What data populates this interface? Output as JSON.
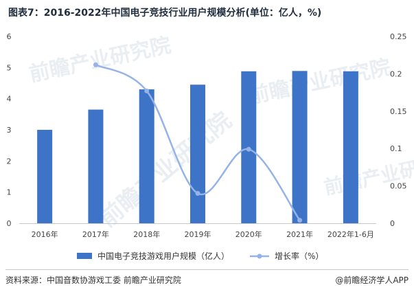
{
  "title": "图表7：2016-2022年中国电子竞技行业用户规模分析(单位：亿人，%)",
  "watermark": "前瞻产业研究院",
  "colors": {
    "bar": "#3e74c7",
    "line": "#95b3e6",
    "axis": "#c8c8c8",
    "text": "#444444"
  },
  "chart_data": {
    "type": "bar",
    "categories": [
      "2016年",
      "2017年",
      "2018年",
      "2019年",
      "2020年",
      "2021年",
      "2022年1-6月"
    ],
    "series": [
      {
        "name": "中国电子竞技游戏用户规模（亿人）",
        "type": "bar",
        "axis": "left",
        "values": [
          3.0,
          3.65,
          4.3,
          4.45,
          4.88,
          4.89,
          4.88
        ]
      },
      {
        "name": "增长率（%）",
        "type": "line",
        "axis": "right",
        "values": [
          null,
          0.212,
          0.177,
          0.04,
          0.099,
          0.004,
          null
        ]
      }
    ],
    "y_left": {
      "min": 0,
      "max": 6,
      "ticks": [
        "0",
        "1",
        "2",
        "3",
        "4",
        "5",
        "6"
      ]
    },
    "y_right": {
      "min": 0,
      "max": 0.25,
      "ticks": [
        "0",
        "0.05",
        "0.1",
        "0.15",
        "0.2",
        "0.25"
      ]
    },
    "grid": false,
    "legend_position": "bottom"
  },
  "footer": {
    "source": "资料来源：中国音数协游戏工委 前瞻产业研究院",
    "brand": "@前瞻经济学人APP"
  }
}
